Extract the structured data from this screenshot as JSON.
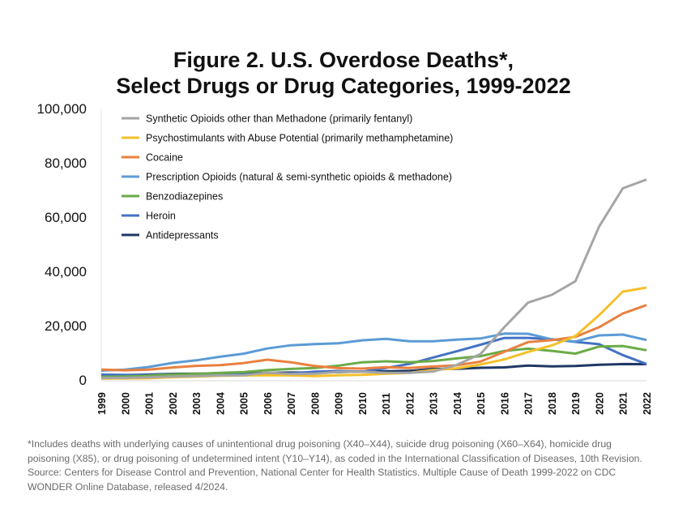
{
  "chart_data": {
    "type": "line",
    "title_line1": "Figure 2. U.S. Overdose Deaths*,",
    "title_line2": "Select Drugs or Drug Categories, 1999-2022",
    "xlabel": "",
    "ylabel": "",
    "ylim": [
      0,
      100000
    ],
    "yticks": [
      "0",
      "20,000",
      "40,000",
      "60,000",
      "80,000",
      "100,000"
    ],
    "ytick_values": [
      0,
      20000,
      40000,
      60000,
      80000,
      100000
    ],
    "x": [
      "1999",
      "2000",
      "2001",
      "2002",
      "2003",
      "2004",
      "2005",
      "2006",
      "2007",
      "2008",
      "2009",
      "2010",
      "2011",
      "2012",
      "2013",
      "2014",
      "2015",
      "2016",
      "2017",
      "2018",
      "2019",
      "2020",
      "2021",
      "2022"
    ],
    "grid": false,
    "legend": "top-left",
    "series": [
      {
        "name": "Synthetic Opioids other than Methadone (primarily fentanyl)",
        "color": "#a5a5a5",
        "values": [
          730,
          782,
          957,
          1295,
          1400,
          1664,
          1742,
          2707,
          2213,
          2306,
          2946,
          3007,
          2666,
          2628,
          3105,
          5544,
          9580,
          19413,
          28466,
          31335,
          36359,
          56516,
          70601,
          73838
        ]
      },
      {
        "name": "Psychostimulants with Abuse Potential (primarily methamphetamine)",
        "color": "#f5c02a",
        "values": [
          547,
          578,
          627,
          1018,
          1216,
          1532,
          1655,
          1747,
          1672,
          1427,
          1696,
          1881,
          2260,
          2636,
          3627,
          4298,
          5716,
          7542,
          10333,
          12676,
          16167,
          23837,
          32537,
          34022
        ]
      },
      {
        "name": "Cocaine",
        "color": "#e9803f",
        "values": [
          3822,
          3544,
          3833,
          4599,
          5199,
          5443,
          6208,
          7448,
          6512,
          5129,
          4350,
          4183,
          4681,
          4404,
          4944,
          5415,
          6784,
          10375,
          13942,
          14666,
          15883,
          19447,
          24486,
          27569
        ]
      },
      {
        "name": "Prescription Opioids (natural & semi-synthetic opioids & methadone)",
        "color": "#5b9bd5",
        "values": [
          3442,
          3785,
          4770,
          6280,
          7238,
          8541,
          9660,
          11589,
          12781,
          13185,
          13523,
          14606,
          15140,
          14233,
          14240,
          14838,
          15280,
          17087,
          17029,
          14975,
          14139,
          16416,
          16706,
          14716
        ]
      },
      {
        "name": "Benzodiazepines",
        "color": "#6aab47",
        "values": [
          1135,
          1298,
          1594,
          2006,
          2248,
          2585,
          2904,
          3612,
          4049,
          4417,
          5257,
          6497,
          6872,
          6524,
          6973,
          7945,
          8791,
          10684,
          11537,
          10724,
          9711,
          12290,
          12499,
          10964
        ]
      },
      {
        "name": "Heroin",
        "color": "#4472c4",
        "values": [
          1960,
          1842,
          1779,
          2089,
          2080,
          1878,
          2009,
          2088,
          2399,
          3041,
          3278,
          3036,
          4397,
          5925,
          8257,
          10574,
          12989,
          15469,
          15482,
          14996,
          14019,
          13165,
          9173,
          5871
        ]
      },
      {
        "name": "Antidepressants",
        "color": "#1f3864",
        "values": [
          1749,
          1802,
          1964,
          2226,
          2300,
          2414,
          2455,
          2581,
          2707,
          2748,
          2870,
          3093,
          3216,
          3345,
          4046,
          4089,
          4471,
          4621,
          5269,
          4979,
          5176,
          5597,
          5863,
          5820
        ]
      }
    ]
  },
  "footnote": [
    "*Includes deaths with underlying causes of unintentional drug poisoning (X40–X44), suicide drug poisoning (X60–X64), homicide drug",
    "poisoning (X85), or drug poisoning of undetermined intent (Y10–Y14), as coded in the International Classification of Diseases, 10th Revision.",
    "Source: Centers for Disease Control and Prevention, National Center for Health Statistics. Multiple Cause of Death 1999-2022 on CDC",
    "WONDER Online Database, released 4/2024."
  ]
}
